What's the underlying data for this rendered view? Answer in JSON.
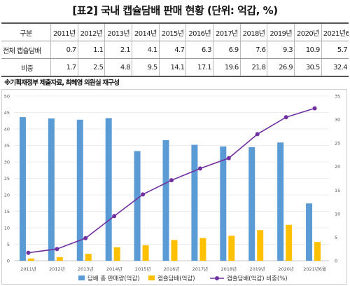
{
  "title": "[표2] 국내 캡슐담배 판매 현황 (단위: 억갑, %)",
  "table": {
    "header": [
      "구분",
      "2011년",
      "2012년",
      "2013년",
      "2014년",
      "2015년",
      "2016년",
      "2017년",
      "2018년",
      "2019년",
      "2020년",
      "2021년6월"
    ],
    "rows": [
      {
        "label": "전체 캡슐담배",
        "values": [
          "0.7",
          "1.1",
          "2.1",
          "4.1",
          "4.7",
          "6.3",
          "6.9",
          "7.6",
          "9.3",
          "10.9",
          "5.7"
        ]
      },
      {
        "label": "비중",
        "values": [
          "1.7",
          "2.5",
          "4.8",
          "9.5",
          "14.1",
          "17.1",
          "19.6",
          "21.8",
          "26.9",
          "30.5",
          "32.4"
        ]
      }
    ]
  },
  "source_note": "※기획재정부 제출자료, 최혜영 의원실 재구성",
  "chart_data": {
    "type": "bar",
    "categories": [
      "2011년",
      "2012년",
      "2013년",
      "2014년",
      "2015년",
      "2016년",
      "2017년",
      "2018년",
      "2019년",
      "2020년",
      "2021년6월"
    ],
    "series": [
      {
        "name": "담배 총 판매량(억갑)",
        "type": "bar",
        "axis": "left",
        "color": "#5b9bd5",
        "values": [
          43.6,
          43.2,
          42.8,
          43.3,
          33.3,
          36.6,
          35.2,
          34.7,
          34.5,
          35.9,
          17.4
        ]
      },
      {
        "name": "캡슐담배(억갑)",
        "type": "bar",
        "axis": "left",
        "color": "#ffc000",
        "values": [
          0.7,
          1.1,
          2.1,
          4.1,
          4.7,
          6.3,
          6.9,
          7.6,
          9.3,
          10.9,
          5.7
        ]
      },
      {
        "name": "캡슐담배(억갑) 비중(%)",
        "type": "line",
        "axis": "right",
        "color": "#7030a0",
        "values": [
          1.7,
          2.5,
          4.8,
          9.5,
          14.1,
          17.1,
          19.6,
          21.8,
          26.9,
          30.5,
          32.4
        ]
      }
    ],
    "y_left": {
      "min": 0,
      "max": 50,
      "ticks": [
        0,
        5,
        10,
        15,
        20,
        25,
        30,
        35,
        40,
        45,
        50
      ]
    },
    "y_right": {
      "min": 0,
      "max": 35,
      "ticks": [
        0,
        5,
        10,
        15,
        20,
        25,
        30,
        35
      ]
    },
    "grid": true,
    "legend_position": "bottom"
  }
}
